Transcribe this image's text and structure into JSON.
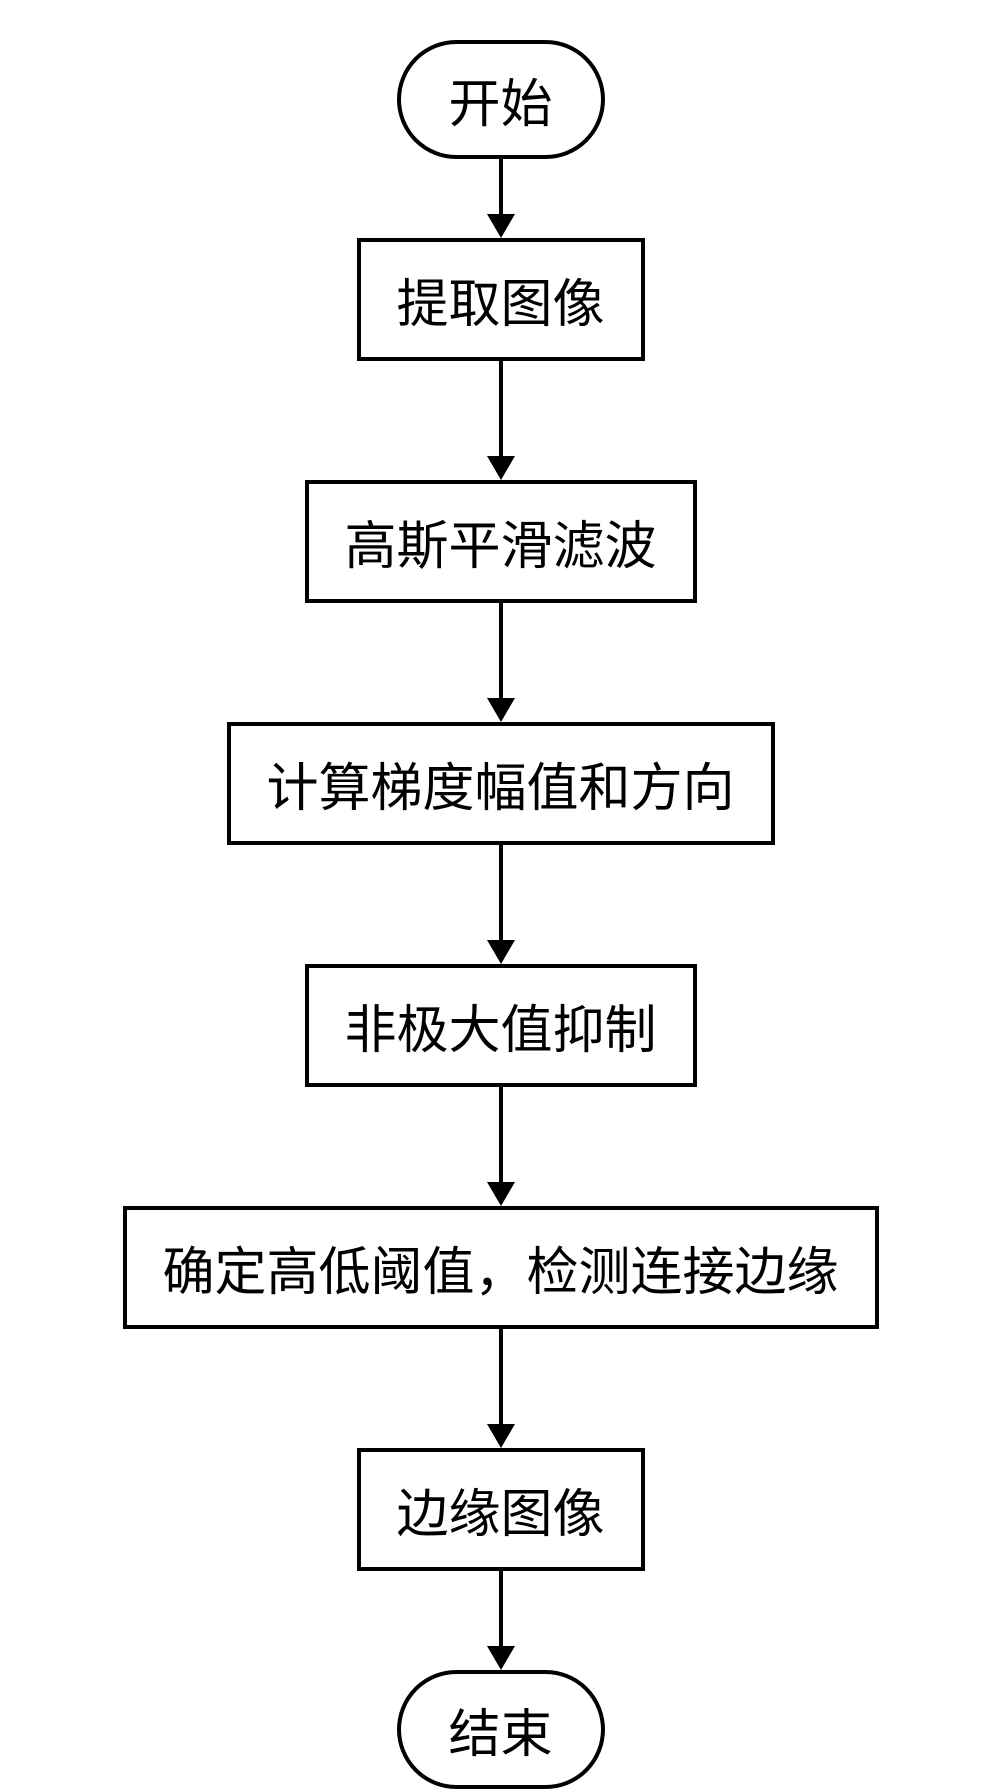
{
  "flowchart": {
    "type": "flowchart",
    "background_color": "#ffffff",
    "border_color": "#000000",
    "border_width": 4,
    "text_color": "#000000",
    "font_size": 52,
    "font_family": "SimSun",
    "terminal_border_radius": 60,
    "arrow_line_width": 4,
    "arrow_head_width": 28,
    "arrow_head_height": 24,
    "nodes": [
      {
        "id": "start",
        "shape": "terminal",
        "label": "开始",
        "arrow_length": 56
      },
      {
        "id": "extract",
        "shape": "process",
        "label": "提取图像",
        "arrow_length": 96
      },
      {
        "id": "gaussian",
        "shape": "process",
        "label": "高斯平滑滤波",
        "arrow_length": 96
      },
      {
        "id": "gradient",
        "shape": "process",
        "label": "计算梯度幅值和方向",
        "arrow_length": 96
      },
      {
        "id": "nms",
        "shape": "process",
        "label": "非极大值抑制",
        "arrow_length": 96
      },
      {
        "id": "threshold",
        "shape": "process",
        "label": "确定高低阈值，检测连接边缘",
        "arrow_length": 96
      },
      {
        "id": "edge",
        "shape": "process",
        "label": "边缘图像",
        "arrow_length": 76
      },
      {
        "id": "end",
        "shape": "terminal",
        "label": "结束",
        "arrow_length": 0
      }
    ]
  }
}
